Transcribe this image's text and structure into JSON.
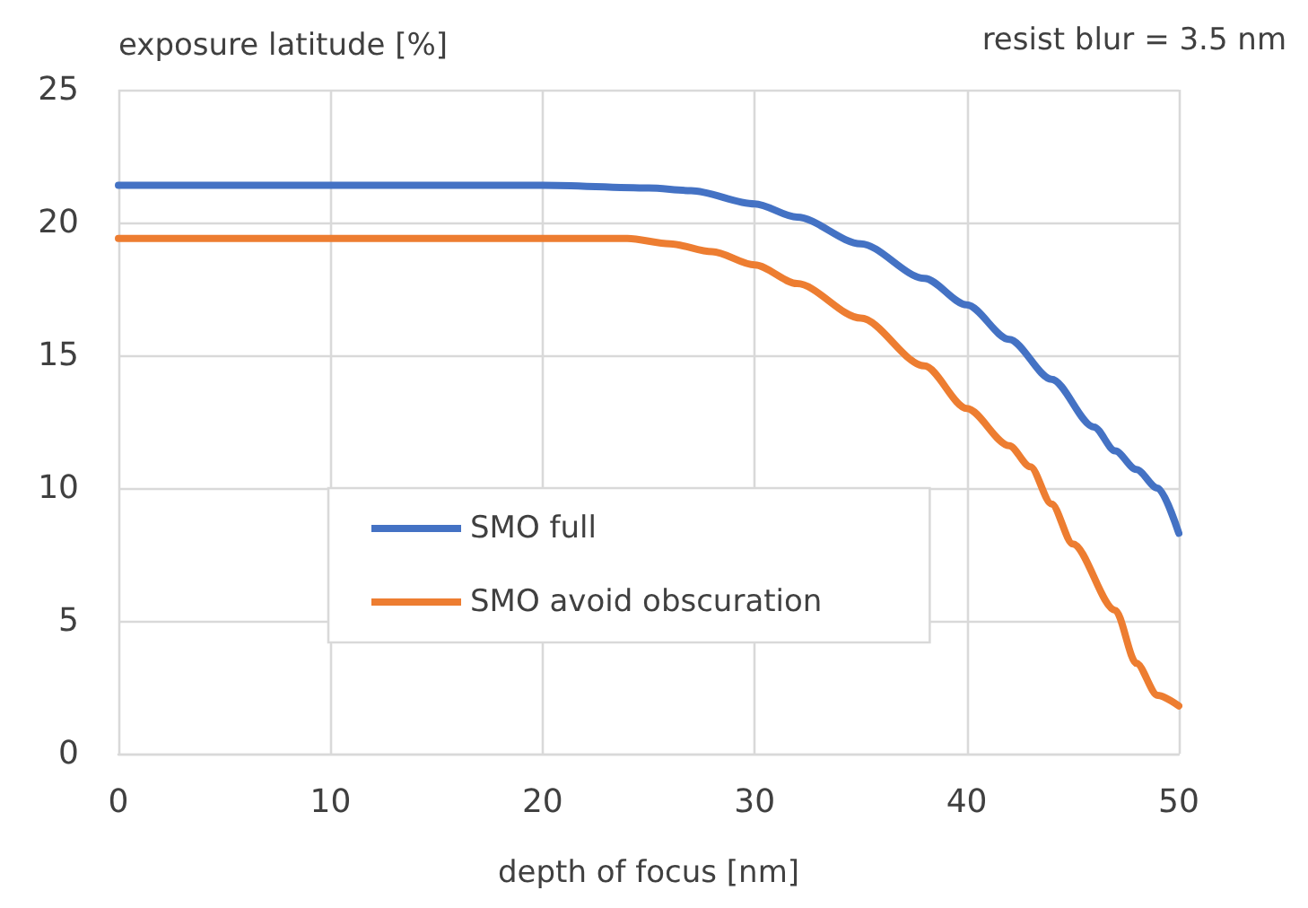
{
  "chart_data": {
    "type": "line",
    "xlabel": "depth of focus [nm]",
    "ylabel": "exposure latitude [%]",
    "annotations": [
      "resist blur = 3.5 nm"
    ],
    "xlim": [
      0,
      50
    ],
    "xticks": [
      0,
      10,
      20,
      30,
      40,
      50
    ],
    "ylim": [
      0,
      25
    ],
    "yticks": [
      0,
      5,
      10,
      15,
      20,
      25
    ],
    "grid": true,
    "legend": "bottom left",
    "marker": "none",
    "line_style": "solid",
    "series": [
      {
        "name": "SMO full",
        "color": "#4472c4",
        "x": [
          0,
          10,
          20,
          25,
          27,
          30,
          32,
          35,
          38,
          40,
          42,
          44,
          46,
          47,
          48,
          49,
          50
        ],
        "values": [
          21.4,
          21.4,
          21.4,
          21.3,
          21.2,
          20.7,
          20.2,
          19.2,
          17.9,
          16.9,
          15.6,
          14.1,
          12.3,
          11.4,
          10.7,
          10.0,
          8.3
        ]
      },
      {
        "name": "SMO avoid obscuration",
        "color": "#ed7d31",
        "x": [
          0,
          10,
          20,
          24,
          26,
          28,
          30,
          32,
          35,
          38,
          40,
          42,
          43,
          44,
          45,
          47,
          48,
          49,
          50
        ],
        "values": [
          19.4,
          19.4,
          19.4,
          19.4,
          19.2,
          18.9,
          18.4,
          17.7,
          16.4,
          14.6,
          13.0,
          11.6,
          10.8,
          9.4,
          7.9,
          5.4,
          3.4,
          2.2,
          1.8
        ]
      }
    ]
  }
}
